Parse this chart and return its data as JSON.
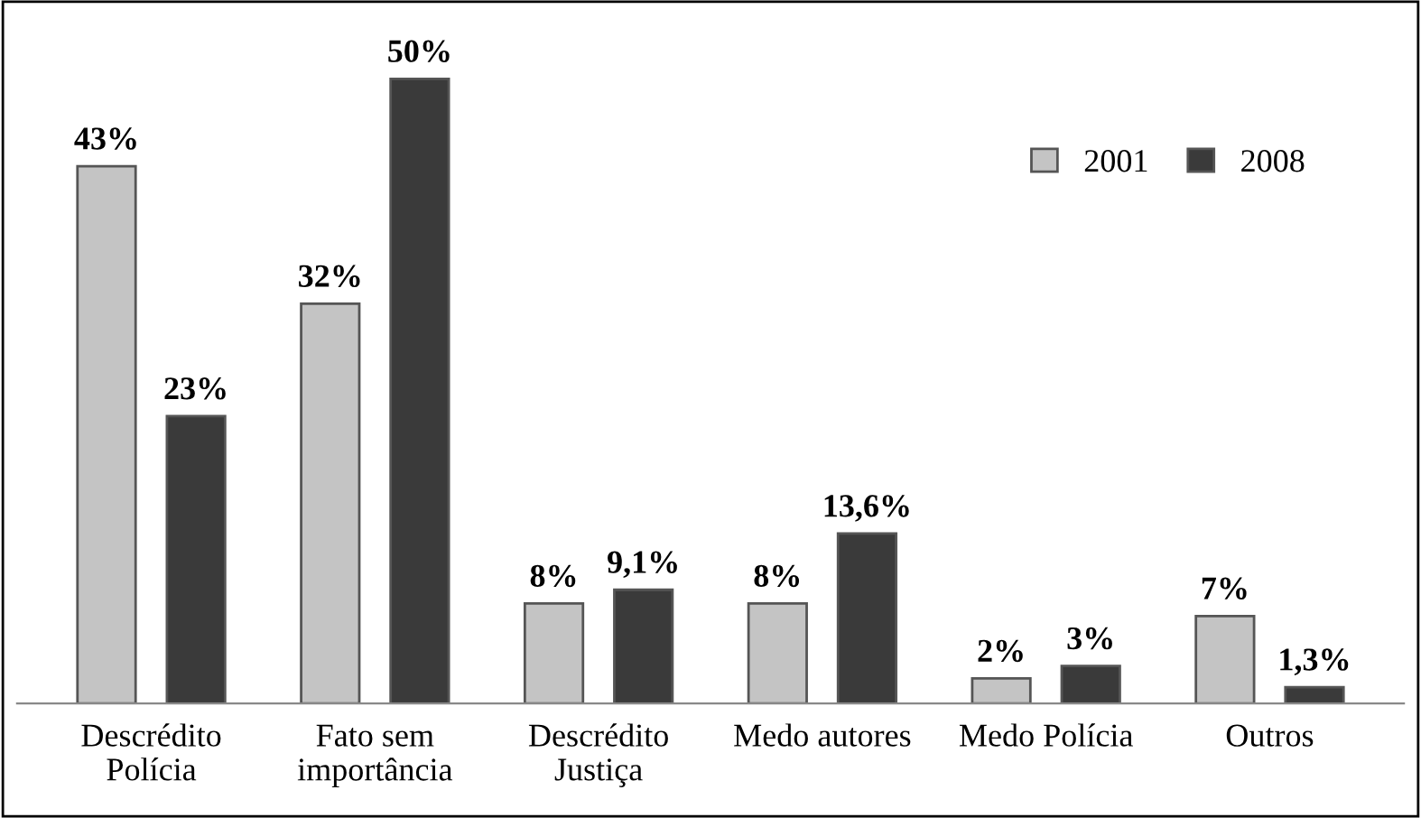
{
  "chart_data": {
    "type": "bar",
    "categories": [
      "Descrédito\nPolícia",
      "Fato sem\nimportância",
      "Descrédito\nJustiça",
      "Medo autores",
      "Medo Polícia",
      "Outros"
    ],
    "series": [
      {
        "name": "2001",
        "color": "#c4c4c4",
        "values": [
          43,
          32,
          8,
          8,
          2,
          7
        ],
        "value_labels": [
          "43%",
          "32%",
          "8%",
          "8%",
          "2%",
          "7%"
        ]
      },
      {
        "name": "2008",
        "color": "#3a3a3a",
        "values": [
          23,
          50,
          9.1,
          13.6,
          3,
          1.3
        ],
        "value_labels": [
          "23%",
          "50%",
          "9,1%",
          "13,6%",
          "3%",
          "1,3%"
        ]
      }
    ],
    "legend": "top right",
    "grid": false
  }
}
